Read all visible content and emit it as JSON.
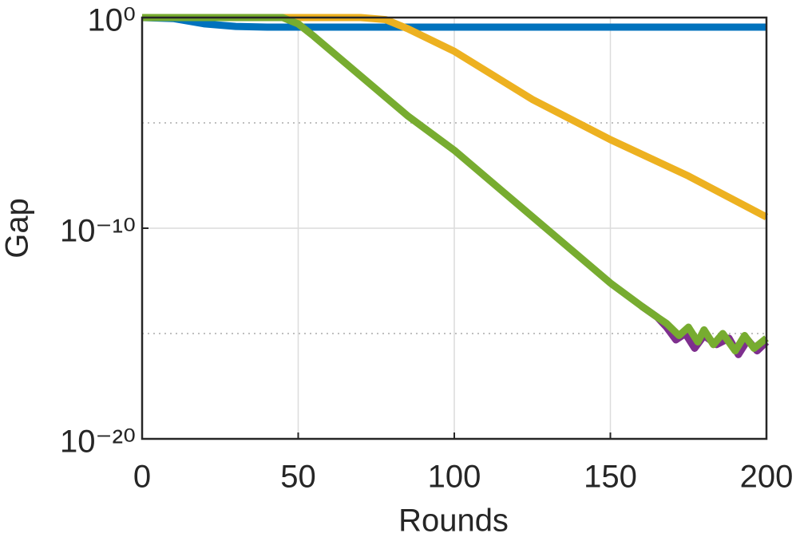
{
  "chart_data": {
    "type": "line",
    "xlabel": "Rounds",
    "ylabel": "Gap",
    "xlim": [
      0,
      200
    ],
    "xticks": [
      0,
      50,
      100,
      150,
      200
    ],
    "ylim": [
      1e-20,
      1
    ],
    "log_y": true,
    "yticks": [
      {
        "value": 1,
        "label": "10⁰"
      },
      {
        "value": 1e-10,
        "label": "10⁻¹⁰"
      },
      {
        "value": 1e-20,
        "label": "10⁻²⁰"
      }
    ],
    "minor_grid_yticks": [
      1e-05,
      1e-15
    ],
    "grid": true,
    "series": [
      {
        "color": "#0072BD",
        "x": [
          0,
          10,
          20,
          30,
          40,
          200
        ],
        "values": [
          1,
          0.9,
          0.5,
          0.38,
          0.35,
          0.35
        ]
      },
      {
        "color": "#EDB120",
        "x": [
          0,
          70,
          78,
          85,
          100,
          125,
          150,
          175,
          200
        ],
        "values": [
          1,
          1,
          0.8,
          0.3,
          0.025,
          0.00013,
          1.6e-06,
          3e-08,
          3.4e-10
        ]
      },
      {
        "color": "#7E2F8E",
        "x": [
          160,
          165,
          168,
          171,
          174,
          177,
          180,
          184,
          188,
          191,
          194,
          197,
          200
        ],
        "values": [
          2e-14,
          6e-15,
          2e-15,
          5e-16,
          1e-15,
          2e-16,
          8e-16,
          3e-16,
          6e-16,
          1e-16,
          5e-16,
          1.5e-16,
          4e-16
        ]
      },
      {
        "color": "#77AC30",
        "x": [
          0,
          45,
          50,
          55,
          85,
          100,
          150,
          160,
          165,
          168,
          172,
          175,
          178,
          180,
          183,
          186,
          190,
          193,
          196,
          200
        ],
        "values": [
          1,
          1,
          0.5,
          0.13,
          2.2e-05,
          5e-07,
          2.5e-13,
          2e-14,
          6e-15,
          3e-15,
          8e-16,
          2e-15,
          4e-16,
          1.5e-15,
          3e-16,
          1e-15,
          1.5e-16,
          8e-16,
          2e-16,
          6e-16
        ]
      }
    ]
  }
}
